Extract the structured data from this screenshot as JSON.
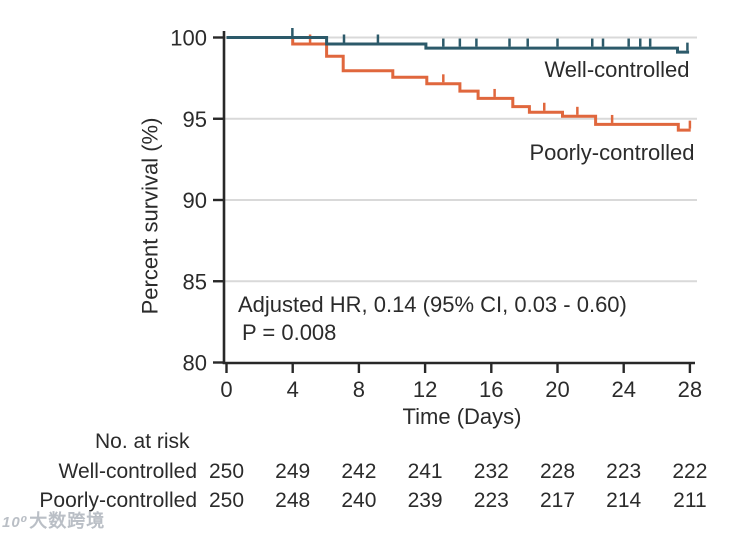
{
  "chart_data": {
    "type": "line",
    "subtype": "kaplan-meier-step",
    "title": "",
    "xlabel": "Time (Days)",
    "ylabel": "Percent survival (%)",
    "xlim": [
      0,
      28
    ],
    "xticks": [
      0,
      4,
      8,
      12,
      16,
      20,
      24,
      28
    ],
    "ylim": [
      80,
      100
    ],
    "yticks": [
      100,
      95,
      90,
      85,
      80
    ],
    "gridlines": [
      100,
      95,
      90,
      85
    ],
    "grid_color": "#d9d9d9",
    "axis_color": "#282828",
    "annotation": {
      "line1": "Adjusted HR, 0.14 (95% CI, 0.03 - 0.60)",
      "line2": "P = 0.008"
    },
    "series": [
      {
        "name": "Poorly-controlled",
        "color": "#e0673d",
        "steps": [
          [
            0,
            100
          ],
          [
            4.0,
            100
          ],
          [
            4.0,
            99.6
          ],
          [
            6.05,
            99.6
          ],
          [
            6.05,
            98.85
          ],
          [
            7.05,
            98.85
          ],
          [
            7.05,
            97.95
          ],
          [
            10.05,
            97.95
          ],
          [
            10.05,
            97.55
          ],
          [
            12.1,
            97.55
          ],
          [
            12.1,
            97.15
          ],
          [
            14.1,
            97.15
          ],
          [
            14.1,
            96.7
          ],
          [
            15.2,
            96.7
          ],
          [
            15.2,
            96.25
          ],
          [
            17.3,
            96.25
          ],
          [
            17.3,
            95.75
          ],
          [
            18.3,
            95.75
          ],
          [
            18.3,
            95.4
          ],
          [
            20.3,
            95.4
          ],
          [
            20.3,
            95.15
          ],
          [
            22.3,
            95.15
          ],
          [
            22.3,
            94.65
          ],
          [
            27.3,
            94.65
          ],
          [
            27.3,
            94.3
          ],
          [
            28.05,
            94.3
          ]
        ],
        "censor_marks": [
          [
            5.05,
            99.6
          ],
          [
            13.1,
            97.15
          ],
          [
            16.2,
            96.25
          ],
          [
            19.2,
            95.4
          ],
          [
            21.2,
            95.15
          ],
          [
            23.3,
            94.65
          ],
          [
            28.0,
            94.3
          ]
        ]
      },
      {
        "name": "Well-controlled",
        "color": "#2c5a6a",
        "steps": [
          [
            0,
            100
          ],
          [
            6.05,
            100
          ],
          [
            6.05,
            99.6
          ],
          [
            12.05,
            99.6
          ],
          [
            12.05,
            99.35
          ],
          [
            27.25,
            99.35
          ],
          [
            27.25,
            99.1
          ],
          [
            27.95,
            99.1
          ]
        ],
        "censor_marks": [
          [
            3.98,
            100
          ],
          [
            7.1,
            99.6
          ],
          [
            9.15,
            99.6
          ],
          [
            13.1,
            99.35
          ],
          [
            14.1,
            99.35
          ],
          [
            15.1,
            99.35
          ],
          [
            17.1,
            99.35
          ],
          [
            18.2,
            99.35
          ],
          [
            20.0,
            99.35
          ],
          [
            22.1,
            99.35
          ],
          [
            22.75,
            99.35
          ],
          [
            24.3,
            99.35
          ],
          [
            25.0,
            99.35
          ],
          [
            25.6,
            99.35
          ],
          [
            27.85,
            99.1
          ]
        ]
      }
    ],
    "curve_labels": {
      "well": "Well-controlled",
      "poorly": "Poorly-controlled"
    },
    "risk_table": {
      "title": "No. at risk",
      "time_points": [
        0,
        4,
        8,
        12,
        16,
        20,
        24,
        28
      ],
      "rows": [
        {
          "label": "Well-controlled",
          "values": [
            "250",
            "249",
            "242",
            "241",
            "232",
            "228",
            "223",
            "222"
          ]
        },
        {
          "label": "Poorly-controlled",
          "values": [
            "250",
            "248",
            "240",
            "239",
            "223",
            "217",
            "214",
            "211"
          ]
        }
      ]
    },
    "legend_position": "inline-labels",
    "grid": "horizontal-only"
  },
  "watermark": {
    "logo": "10⁰",
    "text": "大数跨境"
  }
}
